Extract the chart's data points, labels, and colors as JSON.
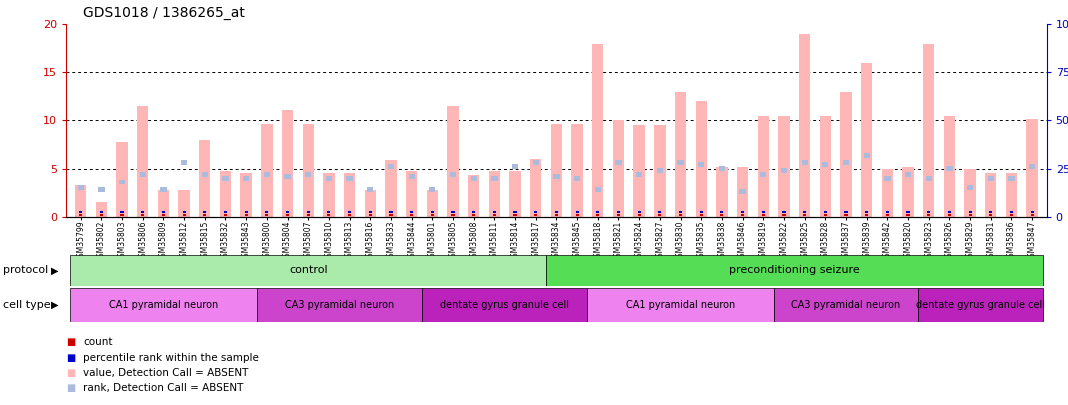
{
  "title": "GDS1018 / 1386265_at",
  "samples": [
    "GSM35799",
    "GSM35802",
    "GSM35803",
    "GSM35806",
    "GSM35809",
    "GSM35812",
    "GSM35815",
    "GSM35832",
    "GSM35843",
    "GSM35800",
    "GSM35804",
    "GSM35807",
    "GSM35810",
    "GSM35813",
    "GSM35816",
    "GSM35833",
    "GSM35844",
    "GSM35801",
    "GSM35805",
    "GSM35808",
    "GSM35811",
    "GSM35814",
    "GSM35817",
    "GSM35834",
    "GSM35845",
    "GSM35818",
    "GSM35821",
    "GSM35824",
    "GSM35827",
    "GSM35830",
    "GSM35835",
    "GSM35838",
    "GSM35846",
    "GSM35819",
    "GSM35822",
    "GSM35825",
    "GSM35828",
    "GSM35837",
    "GSM35839",
    "GSM35842",
    "GSM35820",
    "GSM35823",
    "GSM35826",
    "GSM35829",
    "GSM35831",
    "GSM35836",
    "GSM35847"
  ],
  "values": [
    3.3,
    1.5,
    7.8,
    11.5,
    2.8,
    2.8,
    8.0,
    4.7,
    4.5,
    9.6,
    11.1,
    9.6,
    4.5,
    4.5,
    2.8,
    5.9,
    4.8,
    2.8,
    11.5,
    4.3,
    4.8,
    4.8,
    6.0,
    9.6,
    9.6,
    18.0,
    10.0,
    9.5,
    9.5,
    13.0,
    12.0,
    5.2,
    5.2,
    10.5,
    10.5,
    19.0,
    10.5,
    13.0,
    16.0,
    5.0,
    5.2,
    18.0,
    10.5,
    5.0,
    4.5,
    4.5,
    10.2
  ],
  "ranks_pct": [
    15,
    14,
    18,
    22,
    14,
    28,
    22,
    20,
    20,
    22,
    21,
    22,
    20,
    20,
    14,
    26,
    21,
    14,
    22,
    20,
    20,
    26,
    28,
    21,
    20,
    14,
    28,
    22,
    24,
    28,
    27,
    25,
    13,
    22,
    24,
    28,
    27,
    28,
    32,
    20,
    22,
    20,
    25,
    15,
    20,
    20,
    26
  ],
  "protocol_groups": [
    {
      "label": "control",
      "start": 0,
      "end": 23,
      "color": "#aaeaaa"
    },
    {
      "label": "preconditioning seizure",
      "start": 23,
      "end": 47,
      "color": "#55dd55"
    }
  ],
  "cell_type_groups": [
    {
      "label": "CA1 pyramidal neuron",
      "start": 0,
      "end": 9,
      "color": "#ee82ee"
    },
    {
      "label": "CA3 pyramidal neuron",
      "start": 9,
      "end": 17,
      "color": "#cc44cc"
    },
    {
      "label": "dentate gyrus granule cell",
      "start": 17,
      "end": 25,
      "color": "#bb22bb"
    },
    {
      "label": "CA1 pyramidal neuron",
      "start": 25,
      "end": 34,
      "color": "#ee82ee"
    },
    {
      "label": "CA3 pyramidal neuron",
      "start": 34,
      "end": 41,
      "color": "#cc44cc"
    },
    {
      "label": "dentate gyrus granule cell",
      "start": 41,
      "end": 47,
      "color": "#bb22bb"
    }
  ],
  "ylim_left": [
    0,
    20
  ],
  "ylim_right": [
    0,
    100
  ],
  "bar_color_value": "#ffb6b6",
  "bar_color_rank": "#aabbdd",
  "count_color": "#cc0000",
  "percentile_color": "#0000cc",
  "left_axis_color": "#cc0000",
  "right_axis_color": "#0000bb",
  "bg_color": "#ffffff"
}
